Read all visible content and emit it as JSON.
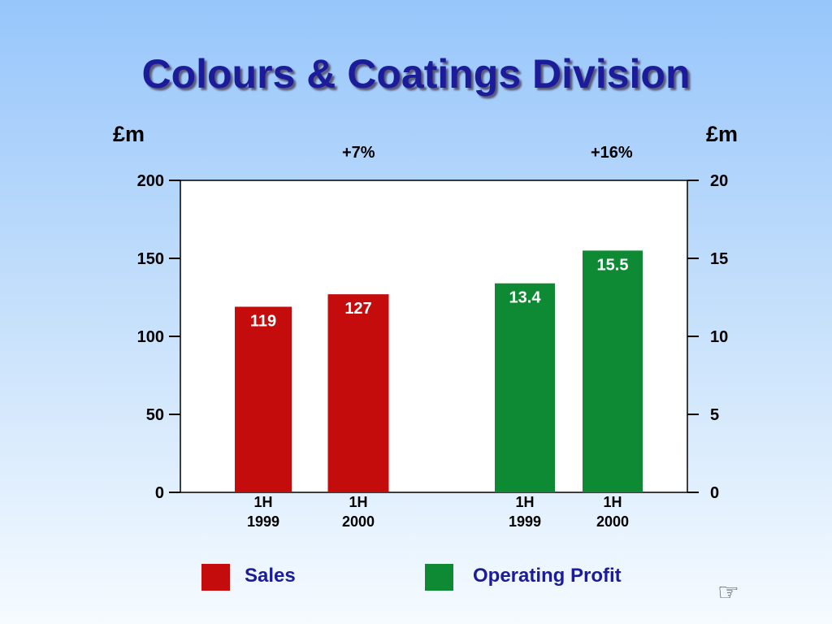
{
  "title": "Colours & Coatings Division",
  "left_unit": "£m",
  "right_unit": "£m",
  "growth": {
    "sales": "+7%",
    "profit": "+16%"
  },
  "legend": {
    "sales": "Sales",
    "profit": "Operating Profit"
  },
  "colors": {
    "sales": "#c40c0c",
    "profit": "#0f8a34",
    "title": "#1c1c9a"
  },
  "icon": "pointing-hand-icon",
  "chart_data": {
    "type": "bar",
    "title": "Colours & Coatings Division",
    "left_axis": {
      "label": "£m",
      "ylim": [
        0,
        200
      ],
      "ticks": [
        "0",
        "50",
        "100",
        "150",
        "200"
      ]
    },
    "right_axis": {
      "label": "£m",
      "ylim": [
        0,
        20
      ],
      "ticks": [
        "0",
        "5",
        "10",
        "15",
        "20"
      ]
    },
    "grid": false,
    "legend_position": "bottom",
    "series": [
      {
        "name": "Sales",
        "axis": "left",
        "categories": [
          [
            "1H",
            "1999"
          ],
          [
            "1H",
            "2000"
          ]
        ],
        "values": [
          119,
          127
        ],
        "labels": [
          "119",
          "127"
        ],
        "growth": "+7%"
      },
      {
        "name": "Operating Profit",
        "axis": "right",
        "categories": [
          [
            "1H",
            "1999"
          ],
          [
            "1H",
            "2000"
          ]
        ],
        "values": [
          13.4,
          15.5
        ],
        "labels": [
          "13.4",
          "15.5"
        ],
        "growth": "+16%"
      }
    ]
  }
}
